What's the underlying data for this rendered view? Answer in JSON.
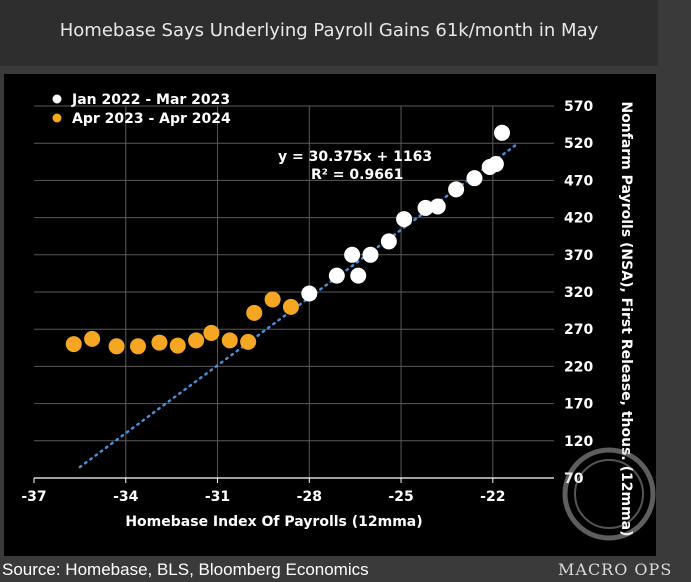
{
  "title": "Homebase Says Underlying Payroll Gains 61k/month in May",
  "source": "Source: Homebase, BLS, Bloomberg Economics",
  "watermark": "MACRO OPS",
  "colors": {
    "background": "#000000",
    "series1": "#ffffff",
    "series2": "#f5a623",
    "trend": "#4a90d9",
    "grid": "#5a5a5a",
    "text": "#ffffff"
  },
  "chart_data": {
    "type": "scatter",
    "title": "Homebase Says Underlying Payroll Gains 61k/month in May",
    "xlabel": "Homebase Index Of Payrolls (12mma)",
    "ylabel": "Nonfarm Payrolls (NSA), First Release, thous. (12mma)",
    "xlim": [
      -37,
      -20
    ],
    "ylim": [
      70,
      570
    ],
    "x_ticks": [
      -37,
      -34,
      -31,
      -28,
      -25,
      -22
    ],
    "y_ticks": [
      70,
      120,
      170,
      220,
      270,
      320,
      370,
      420,
      470,
      520,
      570
    ],
    "y_axis_side": "right",
    "grid": true,
    "legend_position": "top-left",
    "series": [
      {
        "name": "Jan 2022 - Mar 2023",
        "color": "#ffffff",
        "points": [
          [
            -21.7,
            534
          ],
          [
            -21.9,
            492
          ],
          [
            -22.1,
            488
          ],
          [
            -22.6,
            473
          ],
          [
            -23.2,
            458
          ],
          [
            -23.8,
            435
          ],
          [
            -24.2,
            433
          ],
          [
            -24.9,
            418
          ],
          [
            -25.4,
            388
          ],
          [
            -26.0,
            370
          ],
          [
            -26.6,
            370
          ],
          [
            -27.1,
            342
          ],
          [
            -26.4,
            342
          ],
          [
            -28.0,
            318
          ]
        ]
      },
      {
        "name": "Apr 2023 - Apr 2024",
        "color": "#f5a623",
        "points": [
          [
            -28.6,
            300
          ],
          [
            -29.2,
            310
          ],
          [
            -29.8,
            292
          ],
          [
            -30.6,
            255
          ],
          [
            -31.2,
            265
          ],
          [
            -31.7,
            255
          ],
          [
            -32.3,
            248
          ],
          [
            -32.9,
            252
          ],
          [
            -33.6,
            247
          ],
          [
            -34.3,
            247
          ],
          [
            -35.1,
            257
          ],
          [
            -35.7,
            250
          ],
          [
            -30.0,
            253
          ]
        ]
      }
    ],
    "trendline": {
      "equation": "y = 30.375x + 1163",
      "r_squared": "R² = 0.9661",
      "slope": 30.375,
      "intercept": 1163,
      "x_range": [
        -35.5,
        -21.2
      ]
    }
  }
}
